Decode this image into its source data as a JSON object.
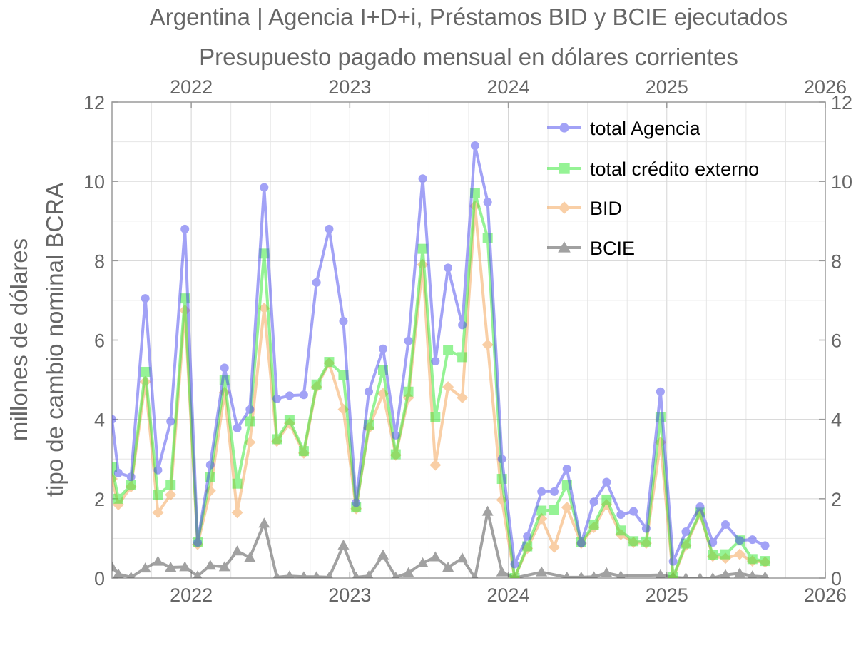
{
  "chart_data": {
    "type": "line",
    "title": "Argentina | Agencia I+D+i, Préstamos BID y BCIE ejecutados",
    "subtitle": "Presupuesto pagado mensual en dólares corrientes",
    "ylabel_line1": "millones de dólares",
    "ylabel_line2": "tipo de cambio nominal BCRA",
    "xlim": [
      2021.5,
      2026.0
    ],
    "ylim": [
      0,
      12
    ],
    "x_ticks": [
      2022,
      2023,
      2024,
      2025,
      2026
    ],
    "x_tick_labels": [
      "2022",
      "2023",
      "2024",
      "2025",
      "2026"
    ],
    "y_ticks": [
      0,
      2,
      4,
      6,
      8,
      10,
      12
    ],
    "y_tick_labels": [
      "0",
      "2",
      "4",
      "6",
      "8",
      "10",
      "12"
    ],
    "grid": true,
    "legend_position": "top-right",
    "series": [
      {
        "name": "total Agencia",
        "color": "#4747ee",
        "marker": "circle",
        "x": [
          2021.5,
          2021.54,
          2021.62,
          2021.71,
          2021.79,
          2021.87,
          2021.96,
          2022.04,
          2022.12,
          2022.21,
          2022.29,
          2022.37,
          2022.46,
          2022.54,
          2022.62,
          2022.71,
          2022.79,
          2022.87,
          2022.96,
          2023.04,
          2023.12,
          2023.21,
          2023.29,
          2023.37,
          2023.46,
          2023.54,
          2023.62,
          2023.71,
          2023.79,
          2023.87,
          2023.96,
          2024.04,
          2024.12,
          2024.21,
          2024.29,
          2024.37,
          2024.46,
          2024.54,
          2024.62,
          2024.71,
          2024.79,
          2024.87,
          2024.96,
          2025.04,
          2025.12,
          2025.21,
          2025.29,
          2025.37,
          2025.46,
          2025.54,
          2025.62
        ],
        "y": [
          4.0,
          2.65,
          2.55,
          7.05,
          2.72,
          3.95,
          8.8,
          0.9,
          2.85,
          5.3,
          3.78,
          4.25,
          9.85,
          4.52,
          4.6,
          4.62,
          7.45,
          8.8,
          6.48,
          1.9,
          4.7,
          5.78,
          3.6,
          5.98,
          10.07,
          5.47,
          7.82,
          6.38,
          10.9,
          9.48,
          3.0,
          0.35,
          1.05,
          2.18,
          2.18,
          2.75,
          0.88,
          1.92,
          2.42,
          1.6,
          1.68,
          1.25,
          4.7,
          0.42,
          1.17,
          1.8,
          0.9,
          1.35,
          0.95,
          0.97,
          0.82
        ]
      },
      {
        "name": "total crédito externo",
        "color": "#2ee82e",
        "marker": "square",
        "x": [
          2021.5,
          2021.54,
          2021.62,
          2021.71,
          2021.79,
          2021.87,
          2021.96,
          2022.04,
          2022.12,
          2022.21,
          2022.29,
          2022.37,
          2022.46,
          2022.54,
          2022.62,
          2022.71,
          2022.79,
          2022.87,
          2022.96,
          2023.04,
          2023.12,
          2023.21,
          2023.29,
          2023.37,
          2023.46,
          2023.54,
          2023.62,
          2023.71,
          2023.79,
          2023.87,
          2023.96,
          2024.04,
          2024.12,
          2024.21,
          2024.29,
          2024.37,
          2024.46,
          2024.54,
          2024.62,
          2024.71,
          2024.79,
          2024.87,
          2024.96,
          2025.04,
          2025.12,
          2025.21,
          2025.29,
          2025.37,
          2025.46,
          2025.54,
          2025.62
        ],
        "y": [
          2.8,
          2.0,
          2.35,
          5.2,
          2.1,
          2.35,
          7.05,
          0.9,
          2.55,
          5.0,
          2.38,
          3.95,
          8.18,
          3.5,
          3.98,
          3.2,
          4.88,
          5.45,
          5.12,
          1.78,
          3.85,
          5.25,
          3.12,
          4.7,
          8.3,
          4.05,
          5.75,
          5.57,
          9.7,
          8.58,
          2.5,
          0.0,
          0.8,
          1.7,
          1.72,
          2.35,
          0.9,
          1.35,
          1.98,
          1.2,
          0.93,
          0.92,
          4.05,
          0.02,
          0.87,
          1.65,
          0.58,
          0.6,
          0.95,
          0.48,
          0.43
        ]
      },
      {
        "name": "BID",
        "color": "#f5a050",
        "marker": "diamond",
        "x": [
          2021.5,
          2021.54,
          2021.62,
          2021.71,
          2021.79,
          2021.87,
          2021.96,
          2022.04,
          2022.12,
          2022.21,
          2022.29,
          2022.37,
          2022.46,
          2022.54,
          2022.62,
          2022.71,
          2022.79,
          2022.87,
          2022.96,
          2023.04,
          2023.12,
          2023.21,
          2023.29,
          2023.37,
          2023.46,
          2023.54,
          2023.62,
          2023.71,
          2023.79,
          2023.87,
          2023.96,
          2024.04,
          2024.12,
          2024.21,
          2024.29,
          2024.37,
          2024.46,
          2024.54,
          2024.62,
          2024.71,
          2024.79,
          2024.87,
          2024.96,
          2025.04,
          2025.12,
          2025.21,
          2025.29,
          2025.37,
          2025.46,
          2025.54,
          2025.62
        ],
        "y": [
          2.5,
          1.85,
          2.3,
          4.95,
          1.65,
          2.1,
          6.75,
          0.85,
          2.2,
          4.68,
          1.65,
          3.42,
          6.8,
          3.45,
          3.9,
          3.15,
          4.82,
          5.42,
          4.25,
          1.75,
          3.78,
          4.65,
          3.1,
          4.55,
          7.9,
          2.85,
          4.82,
          4.55,
          9.38,
          5.88,
          1.97,
          0.0,
          0.75,
          1.5,
          0.78,
          1.78,
          0.88,
          1.28,
          1.85,
          1.1,
          0.9,
          0.88,
          3.42,
          0.0,
          0.82,
          1.62,
          0.55,
          0.5,
          0.6,
          0.43,
          0.4
        ]
      },
      {
        "name": "BCIE",
        "color": "#555555",
        "marker": "triangle",
        "x": [
          2021.5,
          2021.54,
          2021.62,
          2021.71,
          2021.79,
          2021.87,
          2021.96,
          2022.04,
          2022.12,
          2022.21,
          2022.29,
          2022.37,
          2022.46,
          2022.54,
          2022.62,
          2022.71,
          2022.79,
          2022.87,
          2022.96,
          2023.04,
          2023.12,
          2023.21,
          2023.29,
          2023.37,
          2023.46,
          2023.54,
          2023.62,
          2023.71,
          2023.79,
          2023.87,
          2023.96,
          2024.04,
          2024.21,
          2024.37,
          2024.46,
          2024.54,
          2024.62,
          2024.71,
          2024.96,
          2025.04,
          2025.12,
          2025.21,
          2025.29,
          2025.37,
          2025.46,
          2025.54,
          2025.62
        ],
        "y": [
          0.28,
          0.1,
          0.02,
          0.25,
          0.42,
          0.27,
          0.28,
          0.05,
          0.32,
          0.28,
          0.68,
          0.52,
          1.38,
          0.02,
          0.05,
          0.03,
          0.03,
          0.02,
          0.83,
          0.02,
          0.05,
          0.58,
          0.02,
          0.13,
          0.38,
          0.53,
          0.27,
          0.5,
          0.0,
          1.68,
          0.15,
          0.0,
          0.15,
          0.02,
          0.02,
          0.03,
          0.13,
          0.05,
          0.08,
          0.02,
          0.0,
          0.0,
          0.0,
          0.08,
          0.12,
          0.05,
          0.03
        ]
      }
    ]
  }
}
